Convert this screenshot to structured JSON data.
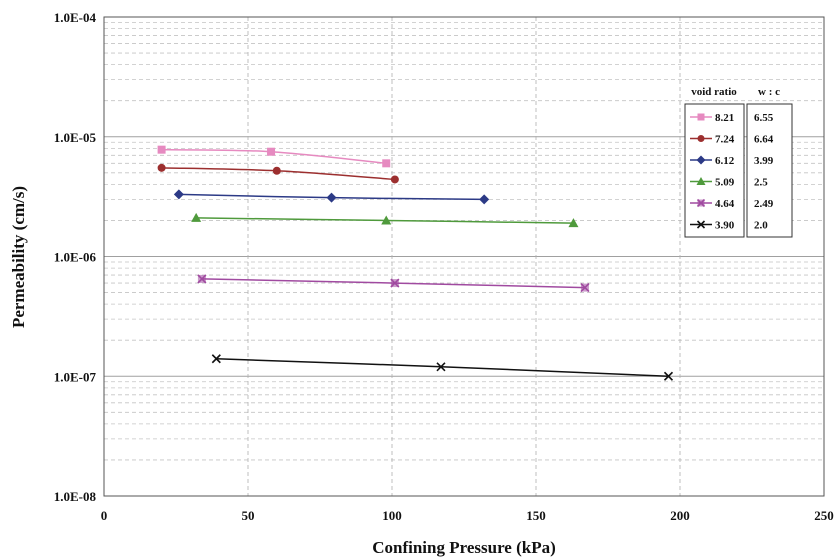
{
  "chart_data": {
    "type": "line",
    "xlabel": "Confining Pressure (kPa)",
    "ylabel": "Permeability (cm/s)",
    "xlim": [
      0,
      250
    ],
    "ylim": [
      1e-08,
      0.0001
    ],
    "yscale": "log",
    "x_ticks": [
      0,
      50,
      100,
      150,
      200,
      250
    ],
    "x_tick_labels": [
      "0",
      "50",
      "100",
      "150",
      "200",
      "250"
    ],
    "y_ticks": [
      1e-08,
      1e-07,
      1e-06,
      1e-05,
      0.0001
    ],
    "y_tick_labels": [
      "1.0E-08",
      "1.0E-07",
      "1.0E-06",
      "1.0E-05",
      "1.0E-04"
    ],
    "grid": true,
    "legend_position": "top-right",
    "legend_headers": [
      "void ratio",
      "w : c"
    ],
    "series": [
      {
        "name": "8.21",
        "wc": "6.55",
        "color": "#e68ac0",
        "marker": "square",
        "x": [
          20,
          58,
          98
        ],
        "y": [
          7.8e-06,
          7.5e-06,
          6e-06
        ]
      },
      {
        "name": "7.24",
        "wc": "6.64",
        "color": "#9c2f2f",
        "marker": "circle",
        "x": [
          20,
          60,
          101
        ],
        "y": [
          5.5e-06,
          5.2e-06,
          4.4e-06
        ]
      },
      {
        "name": "6.12",
        "wc": "3.99",
        "color": "#2c3a86",
        "marker": "diamond",
        "x": [
          26,
          79,
          132
        ],
        "y": [
          3.3e-06,
          3.1e-06,
          3e-06
        ]
      },
      {
        "name": "5.09",
        "wc": "2.5",
        "color": "#4f9a3c",
        "marker": "triangle",
        "x": [
          32,
          98,
          163
        ],
        "y": [
          2.1e-06,
          2e-06,
          1.9e-06
        ]
      },
      {
        "name": "4.64",
        "wc": "2.49",
        "color": "#a04aa0",
        "marker": "xsquare",
        "x": [
          34,
          101,
          167
        ],
        "y": [
          6.5e-07,
          6e-07,
          5.5e-07
        ]
      },
      {
        "name": "3.90",
        "wc": "2.0",
        "color": "#111111",
        "marker": "x",
        "x": [
          39,
          117,
          196
        ],
        "y": [
          1.4e-07,
          1.2e-07,
          1e-07
        ]
      }
    ]
  }
}
